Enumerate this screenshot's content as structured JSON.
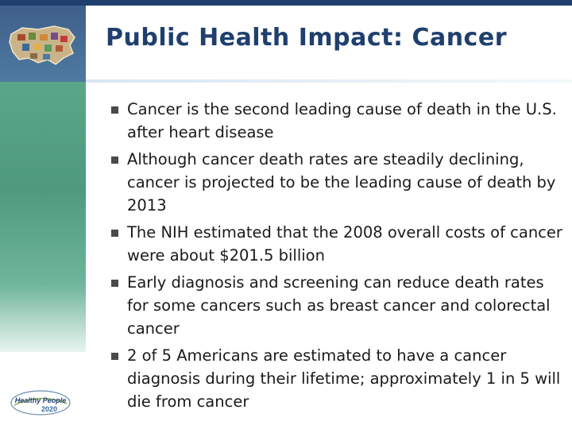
{
  "slide": {
    "title": "Public Health Impact: Cancer",
    "bullets": [
      "Cancer is the second leading cause of death in the U.S. after heart disease",
      "Although cancer death rates are steadily declining, cancer is projected to be the leading cause of death by 2013",
      "The NIH estimated that the 2008 overall costs of cancer were about $201.5 billion",
      "Early diagnosis and screening can reduce death rates for some cancers such as breast cancer and colorectal cancer",
      "2 of 5 Americans are estimated to have a cancer diagnosis during their lifetime; approximately 1 in 5 will die from cancer"
    ]
  },
  "logo": {
    "line1": "Healthy People",
    "line2": "2020"
  },
  "colors": {
    "title": "#1f3f6e",
    "teal_band": "#5aa688",
    "top_bar": "#1f3f6e"
  }
}
